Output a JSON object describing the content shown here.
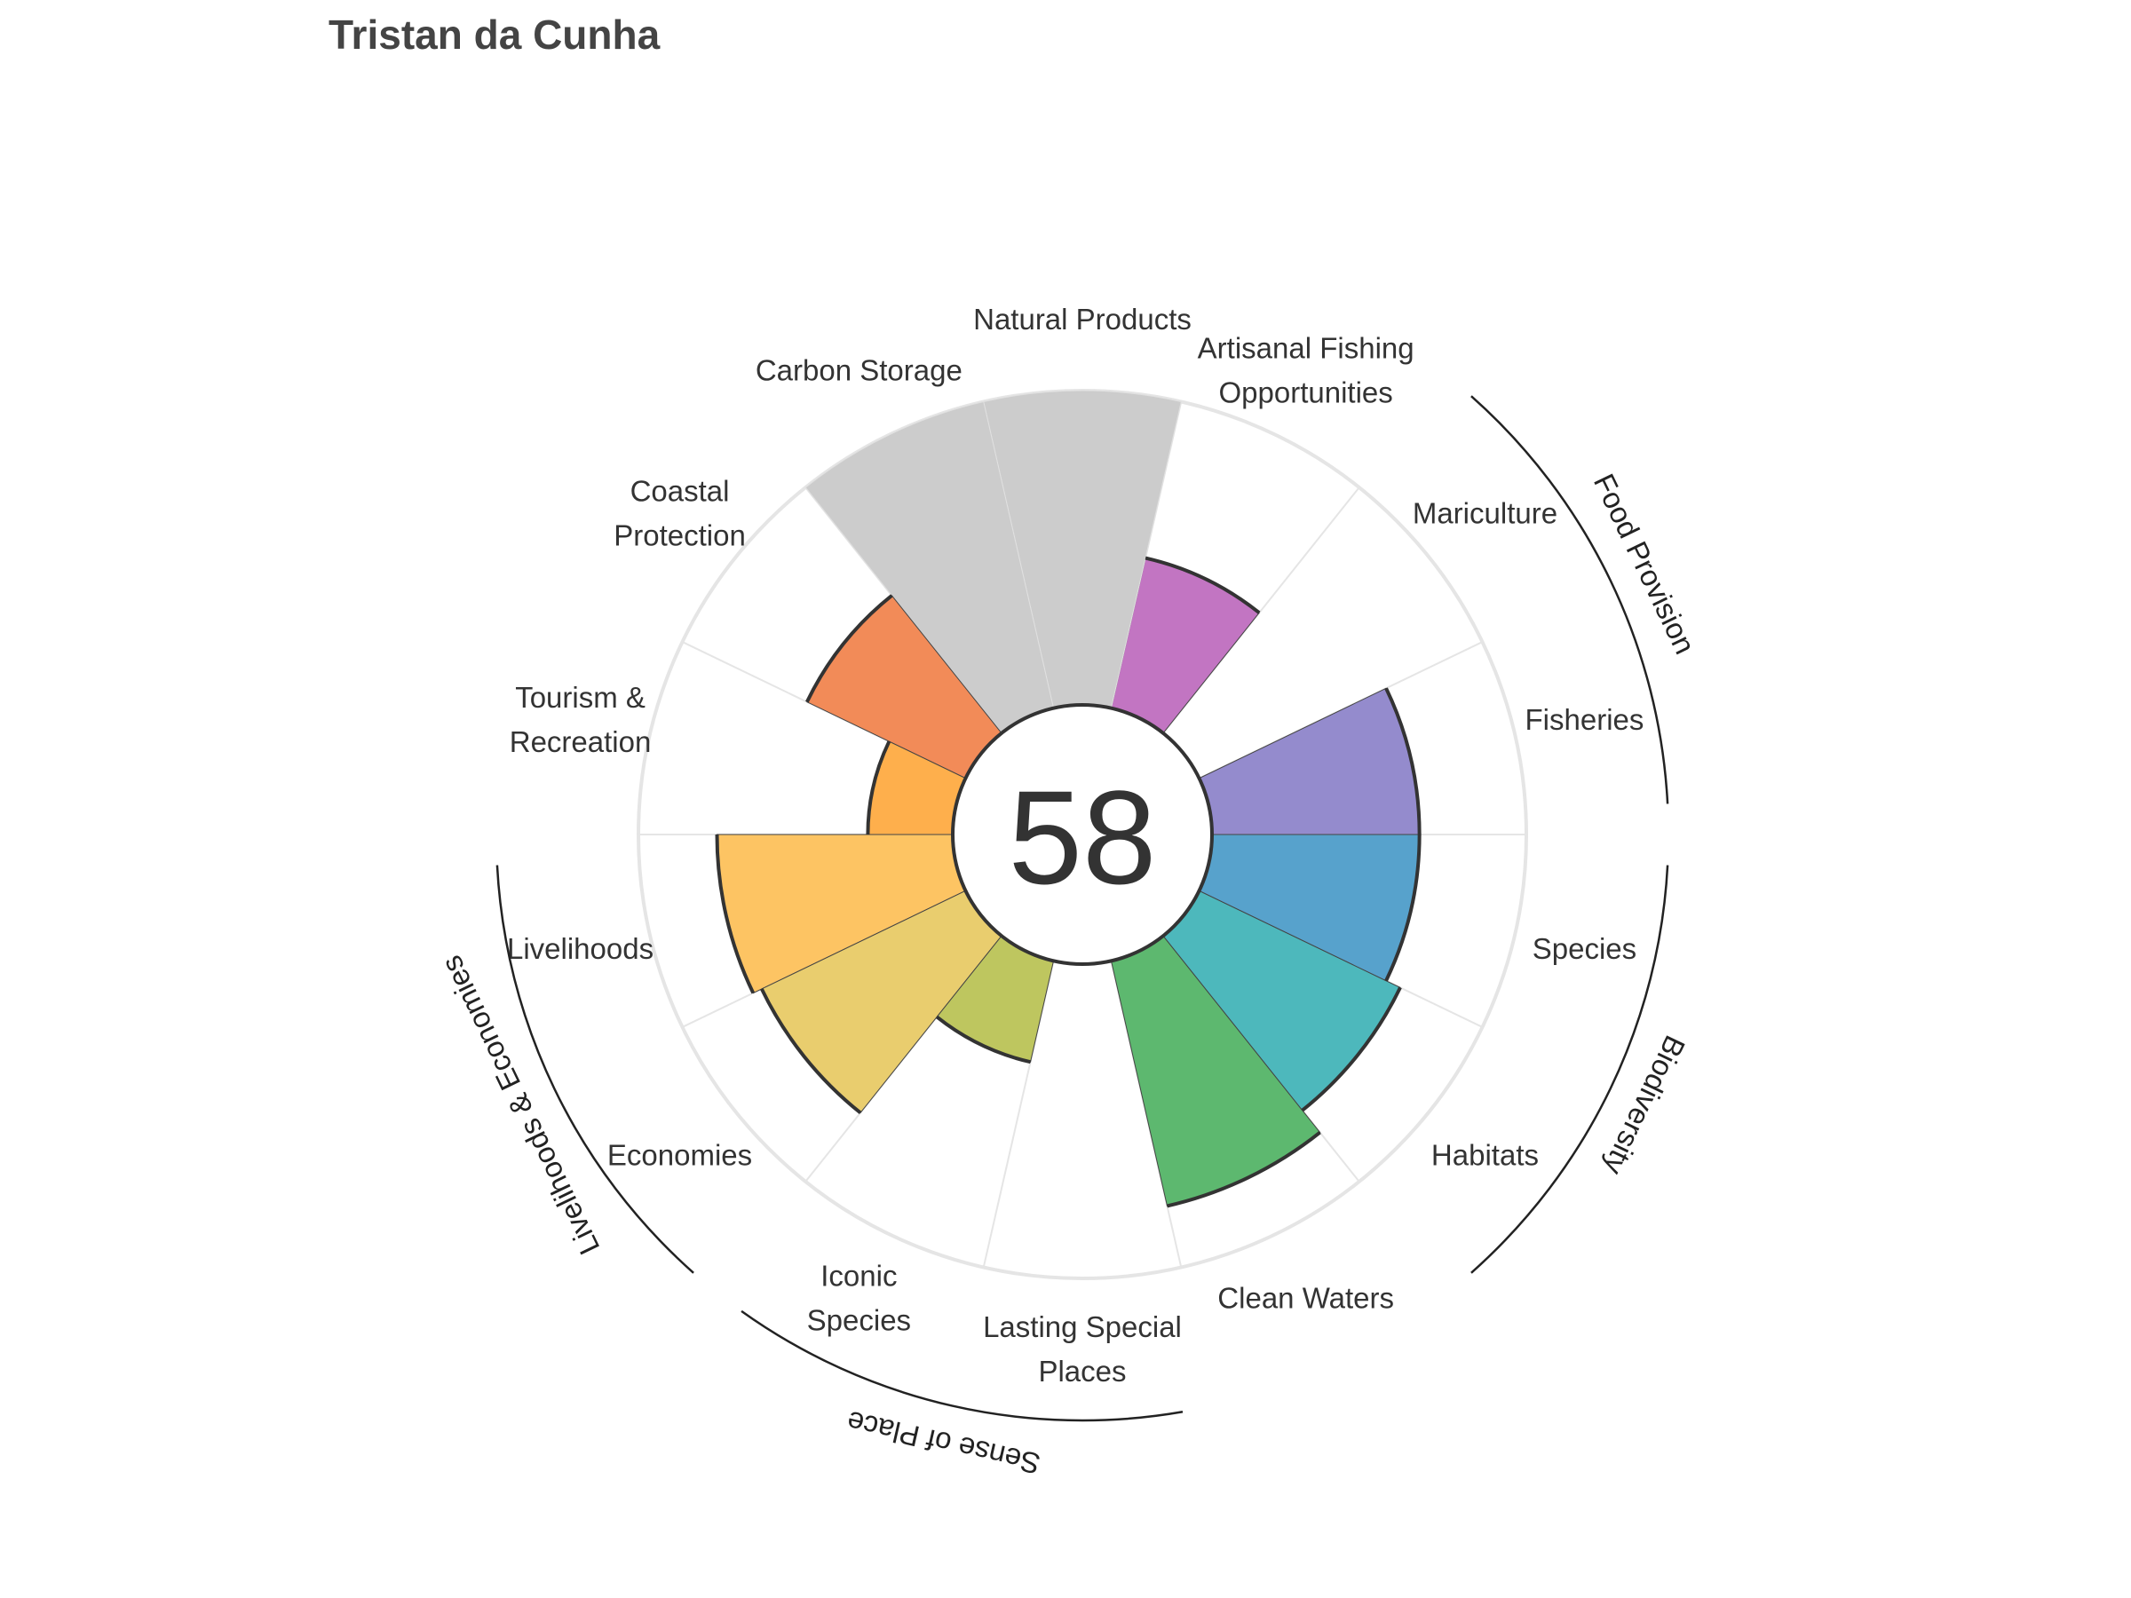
{
  "chart_data": {
    "type": "flower",
    "title": "Tristan da Cunha",
    "overall_score": "58",
    "score_range": [
      0,
      100
    ],
    "petals": [
      {
        "name": "Fisheries",
        "label_lines": [
          "Fisheries"
        ],
        "value": 66,
        "color": "#948bcd",
        "na": false
      },
      {
        "name": "Mariculture",
        "label_lines": [
          "Mariculture"
        ],
        "value": 0,
        "color": "#ffffff",
        "na": false
      },
      {
        "name": "Artisanal Fishing Opportunities",
        "label_lines": [
          "Artisanal Fishing",
          "Opportunities"
        ],
        "value": 49,
        "color": "#c275c2",
        "na": false
      },
      {
        "name": "Natural Products",
        "label_lines": [
          "Natural Products"
        ],
        "value": 100,
        "color": "#cccccc",
        "na": true
      },
      {
        "name": "Carbon Storage",
        "label_lines": [
          "Carbon Storage"
        ],
        "value": 100,
        "color": "#cccccc",
        "na": true
      },
      {
        "name": "Coastal Protection",
        "label_lines": [
          "Coastal",
          "Protection"
        ],
        "value": 56,
        "color": "#f28b58",
        "na": false
      },
      {
        "name": "Tourism & Recreation",
        "label_lines": [
          "Tourism &",
          "Recreation"
        ],
        "value": 27,
        "color": "#feaf4c",
        "na": false
      },
      {
        "name": "Livelihoods",
        "label_lines": [
          "Livelihoods"
        ],
        "value": 75,
        "color": "#fdc463",
        "na": false
      },
      {
        "name": "Economies",
        "label_lines": [
          "Economies"
        ],
        "value": 72,
        "color": "#e9cd6e",
        "na": false
      },
      {
        "name": "Iconic Species",
        "label_lines": [
          "Iconic",
          "Species"
        ],
        "value": 33,
        "color": "#bec65f",
        "na": false
      },
      {
        "name": "Lasting Special Places",
        "label_lines": [
          "Lasting Special",
          "Places"
        ],
        "value": 0,
        "color": "#ffffff",
        "na": false
      },
      {
        "name": "Clean Waters",
        "label_lines": [
          "Clean Waters"
        ],
        "value": 80,
        "color": "#5db86f",
        "na": false
      },
      {
        "name": "Habitats",
        "label_lines": [
          "Habitats"
        ],
        "value": 71,
        "color": "#4db8bc",
        "na": false
      },
      {
        "name": "Species",
        "label_lines": [
          "Species"
        ],
        "value": 66,
        "color": "#57a2cc",
        "na": false
      }
    ],
    "groups": [
      {
        "name": "Food Provision",
        "petals": [
          "Fisheries",
          "Mariculture"
        ]
      },
      {
        "name": "Biodiversity",
        "petals": [
          "Habitats",
          "Species"
        ]
      },
      {
        "name": "Sense of Place",
        "petals": [
          "Iconic Species",
          "Lasting Special Places"
        ]
      },
      {
        "name": "Livelihoods & Economies",
        "petals": [
          "Livelihoods",
          "Economies"
        ]
      }
    ],
    "colors": {
      "grid_ring": "#e5e5e5",
      "grid_spoke": "#e5e5e5",
      "petal_outline": "#333333",
      "group_arc": "#222222"
    }
  }
}
